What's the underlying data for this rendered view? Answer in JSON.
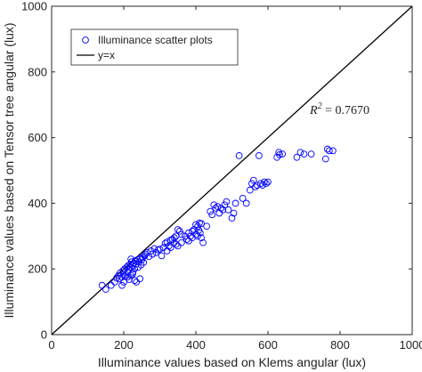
{
  "chart_data": {
    "type": "scatter",
    "title": "",
    "xlabel": "Illuminance values based on Klems angular (lux)",
    "ylabel": "Illuminance values based on Tensor tree angular (lux)",
    "xlim": [
      0,
      1000
    ],
    "ylim": [
      0,
      1000
    ],
    "xticks": [
      "0",
      "200",
      "400",
      "600",
      "800",
      "1000"
    ],
    "yticks": [
      "0",
      "200",
      "400",
      "600",
      "800",
      "1000"
    ],
    "grid": false,
    "legend_position": "top-left",
    "annotation": {
      "prefix": "R",
      "exponent": "2",
      "rest": " = 0.7670"
    },
    "series": [
      {
        "name": "Illuminance scatter plots",
        "marker": "open-circle",
        "color": "#0000ff",
        "points": [
          [
            140,
            150
          ],
          [
            150,
            138
          ],
          [
            165,
            150
          ],
          [
            175,
            160
          ],
          [
            180,
            172
          ],
          [
            185,
            180
          ],
          [
            188,
            170
          ],
          [
            190,
            188
          ],
          [
            195,
            175
          ],
          [
            198,
            195
          ],
          [
            200,
            183
          ],
          [
            202,
            200
          ],
          [
            205,
            178
          ],
          [
            208,
            205
          ],
          [
            210,
            190
          ],
          [
            212,
            210
          ],
          [
            215,
            198
          ],
          [
            218,
            215
          ],
          [
            220,
            205
          ],
          [
            222,
            222
          ],
          [
            225,
            210
          ],
          [
            225,
            190
          ],
          [
            228,
            218
          ],
          [
            230,
            200
          ],
          [
            232,
            225
          ],
          [
            235,
            215
          ],
          [
            238,
            228
          ],
          [
            240,
            205
          ],
          [
            242,
            222
          ],
          [
            245,
            232
          ],
          [
            248,
            212
          ],
          [
            250,
            228
          ],
          [
            252,
            235
          ],
          [
            255,
            220
          ],
          [
            258,
            240
          ],
          [
            210,
            175
          ],
          [
            215,
            168
          ],
          [
            220,
            180
          ],
          [
            225,
            185
          ],
          [
            230,
            165
          ],
          [
            235,
            160
          ],
          [
            245,
            170
          ],
          [
            220,
            230
          ],
          [
            200,
            160
          ],
          [
            195,
            150
          ],
          [
            260,
            245
          ],
          [
            265,
            250
          ],
          [
            270,
            238
          ],
          [
            275,
            255
          ],
          [
            280,
            245
          ],
          [
            285,
            262
          ],
          [
            290,
            250
          ],
          [
            295,
            258
          ],
          [
            300,
            260
          ],
          [
            305,
            240
          ],
          [
            310,
            265
          ],
          [
            315,
            278
          ],
          [
            320,
            282
          ],
          [
            325,
            270
          ],
          [
            330,
            288
          ],
          [
            335,
            290
          ],
          [
            340,
            295
          ],
          [
            345,
            300
          ],
          [
            350,
            320
          ],
          [
            355,
            315
          ],
          [
            360,
            305
          ],
          [
            320,
            255
          ],
          [
            330,
            265
          ],
          [
            340,
            280
          ],
          [
            345,
            275
          ],
          [
            350,
            270
          ],
          [
            360,
            280
          ],
          [
            370,
            300
          ],
          [
            375,
            290
          ],
          [
            380,
            310
          ],
          [
            385,
            300
          ],
          [
            390,
            315
          ],
          [
            395,
            320
          ],
          [
            400,
            335
          ],
          [
            405,
            330
          ],
          [
            408,
            318
          ],
          [
            410,
            340
          ],
          [
            412,
            310
          ],
          [
            415,
            338
          ],
          [
            380,
            285
          ],
          [
            390,
            295
          ],
          [
            400,
            305
          ],
          [
            405,
            300
          ],
          [
            415,
            295
          ],
          [
            420,
            280
          ],
          [
            430,
            330
          ],
          [
            440,
            375
          ],
          [
            445,
            365
          ],
          [
            450,
            395
          ],
          [
            455,
            385
          ],
          [
            460,
            390
          ],
          [
            465,
            370
          ],
          [
            470,
            385
          ],
          [
            475,
            380
          ],
          [
            480,
            395
          ],
          [
            485,
            405
          ],
          [
            490,
            380
          ],
          [
            500,
            355
          ],
          [
            505,
            370
          ],
          [
            510,
            400
          ],
          [
            520,
            545
          ],
          [
            530,
            415
          ],
          [
            540,
            400
          ],
          [
            550,
            440
          ],
          [
            555,
            460
          ],
          [
            560,
            470
          ],
          [
            565,
            450
          ],
          [
            570,
            455
          ],
          [
            575,
            545
          ],
          [
            580,
            460
          ],
          [
            585,
            455
          ],
          [
            590,
            465
          ],
          [
            595,
            460
          ],
          [
            600,
            465
          ],
          [
            625,
            540
          ],
          [
            630,
            555
          ],
          [
            632,
            548
          ],
          [
            640,
            550
          ],
          [
            680,
            540
          ],
          [
            690,
            555
          ],
          [
            700,
            550
          ],
          [
            720,
            550
          ],
          [
            760,
            535
          ],
          [
            765,
            565
          ],
          [
            770,
            560
          ],
          [
            780,
            560
          ]
        ]
      },
      {
        "name": "y=x",
        "line": true,
        "color": "#000000",
        "points": [
          [
            0,
            0
          ],
          [
            1000,
            1000
          ]
        ]
      }
    ]
  }
}
